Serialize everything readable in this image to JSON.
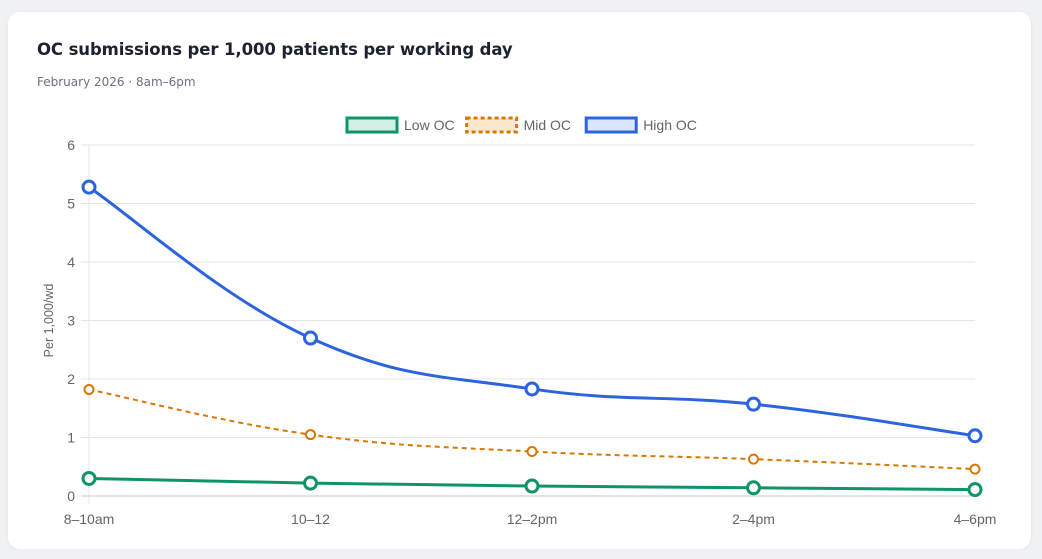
{
  "card": {
    "title": "OC submissions per 1,000 patients per working day",
    "subtitle": "February 2026 · 8am–6pm"
  },
  "chart_data": {
    "type": "line",
    "title": "",
    "xlabel": "",
    "ylabel": "Per 1,000/wd",
    "categories": [
      "8–10am",
      "10–12",
      "12–2pm",
      "2–4pm",
      "4–6pm"
    ],
    "ylim": [
      0,
      6
    ],
    "yticks": [
      0,
      1,
      2,
      3,
      4,
      5,
      6
    ],
    "grid": true,
    "legend_position": "top",
    "series": [
      {
        "name": "Low OC",
        "values": [
          0.3,
          0.22,
          0.17,
          0.14,
          0.11
        ],
        "color": "#0f9466",
        "fill": "#d4efe3",
        "dashed": false,
        "point_size": "large",
        "smooth": false
      },
      {
        "name": "Mid OC",
        "values": [
          1.82,
          1.05,
          0.76,
          0.63,
          0.46
        ],
        "color": "#d97706",
        "fill": "#fbe7cd",
        "dashed": true,
        "point_size": "small",
        "smooth": true
      },
      {
        "name": "High OC",
        "values": [
          5.28,
          2.7,
          1.83,
          1.57,
          1.03
        ],
        "color": "#2c64de",
        "fill": "#dbe5fb",
        "dashed": false,
        "point_size": "large",
        "smooth": true
      }
    ]
  },
  "colors": {
    "grid": "#e5e5e5",
    "axis_text": "#666666"
  }
}
